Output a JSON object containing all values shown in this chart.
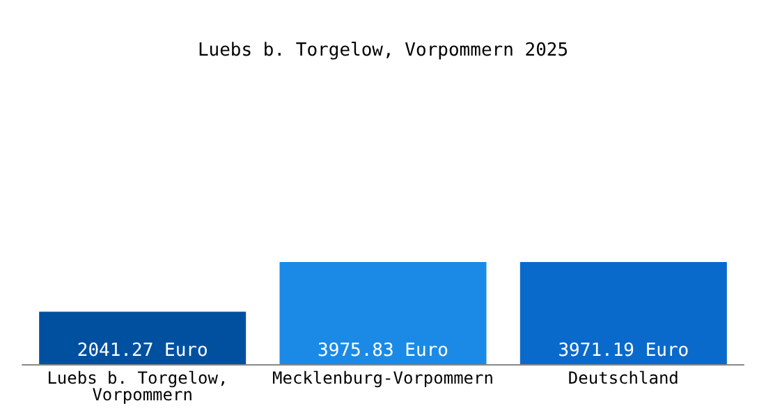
{
  "chart_data": {
    "type": "bar",
    "title": "Luebs b. Torgelow, Vorpommern 2025",
    "categories": [
      "Luebs b. Torgelow, Vorpommern",
      "Mecklenburg-Vorpommern",
      "Deutschland"
    ],
    "values": [
      2041.27,
      3975.83,
      3971.19
    ],
    "value_labels": [
      "2041.27 Euro",
      "3975.83 Euro",
      "3971.19 Euro"
    ],
    "colors": [
      "#0050a0",
      "#1a8ae6",
      "#0a6acc"
    ]
  }
}
